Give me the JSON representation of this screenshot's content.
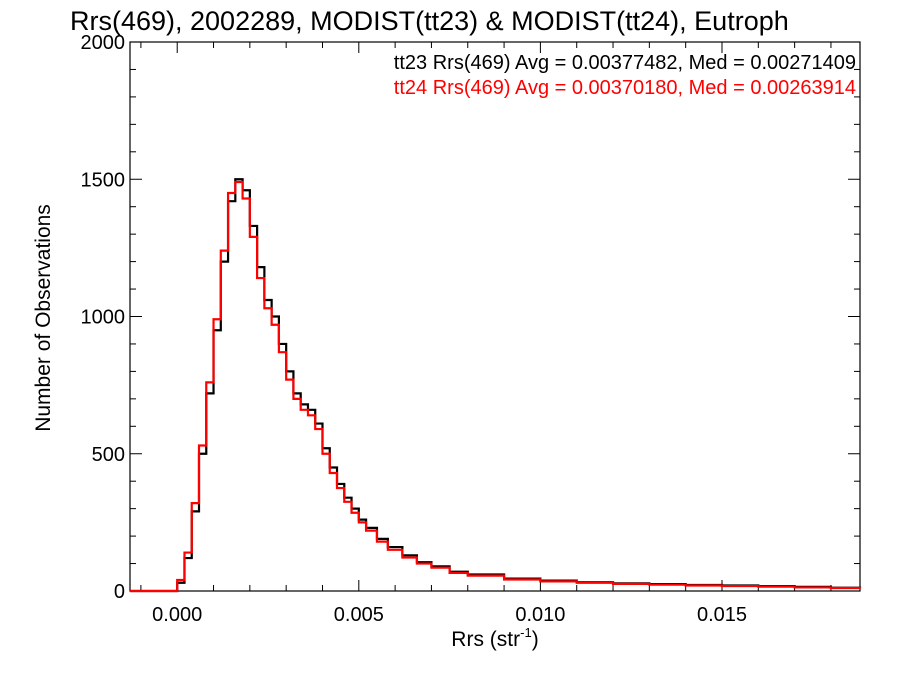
{
  "chart_data": {
    "type": "line",
    "title": "Rrs(469), 2002289, MODIST(tt23) & MODIST(tt24), Eutroph",
    "xlabel": "Rrs (str",
    "xlabel_superscript": "-1",
    "xlabel_suffix": ")",
    "ylabel": "Number of Observations",
    "xlim": [
      -0.0013,
      0.0188
    ],
    "ylim": [
      0,
      2000
    ],
    "x_ticks": [
      "0.000",
      "0.005",
      "0.010",
      "0.015"
    ],
    "x_tick_values": [
      0.0,
      0.005,
      0.01,
      0.015
    ],
    "y_ticks": [
      "0",
      "500",
      "1000",
      "1500",
      "2000"
    ],
    "y_tick_values": [
      0,
      500,
      1000,
      1500,
      2000
    ],
    "grid": false,
    "legend_position": "top-right",
    "curve_shape": "step",
    "series": [
      {
        "name": "tt23",
        "label": "tt23 Rrs(469) Avg = 0.00377482, Med = 0.00271409",
        "color": "#000000",
        "x": [
          -0.0013,
          0.0,
          0.0002,
          0.0004,
          0.0006,
          0.0008,
          0.001,
          0.0012,
          0.0014,
          0.0016,
          0.0018,
          0.002,
          0.0022,
          0.0024,
          0.0026,
          0.0028,
          0.003,
          0.0032,
          0.0034,
          0.0036,
          0.0038,
          0.004,
          0.0042,
          0.0044,
          0.0046,
          0.0048,
          0.005,
          0.0052,
          0.0055,
          0.0058,
          0.0062,
          0.0066,
          0.007,
          0.0075,
          0.008,
          0.009,
          0.01,
          0.011,
          0.012,
          0.013,
          0.014,
          0.015,
          0.016,
          0.017,
          0.018,
          0.0188
        ],
        "y": [
          0,
          30,
          120,
          290,
          500,
          720,
          950,
          1200,
          1420,
          1500,
          1460,
          1330,
          1180,
          1060,
          1000,
          900,
          800,
          720,
          680,
          660,
          610,
          520,
          450,
          390,
          340,
          300,
          260,
          230,
          190,
          160,
          130,
          105,
          90,
          70,
          60,
          45,
          38,
          32,
          28,
          25,
          22,
          20,
          18,
          15,
          12,
          10
        ]
      },
      {
        "name": "tt24",
        "label": "tt24 Rrs(469) Avg = 0.00370180, Med = 0.00263914",
        "color": "#ff0000",
        "x": [
          -0.0013,
          0.0,
          0.0002,
          0.0004,
          0.0006,
          0.0008,
          0.001,
          0.0012,
          0.0014,
          0.0016,
          0.0018,
          0.002,
          0.0022,
          0.0024,
          0.0026,
          0.0028,
          0.003,
          0.0032,
          0.0034,
          0.0036,
          0.0038,
          0.004,
          0.0042,
          0.0044,
          0.0046,
          0.0048,
          0.005,
          0.0052,
          0.0055,
          0.0058,
          0.0062,
          0.0066,
          0.007,
          0.0075,
          0.008,
          0.009,
          0.01,
          0.011,
          0.012,
          0.013,
          0.014,
          0.015,
          0.016,
          0.017,
          0.018,
          0.0188
        ],
        "y": [
          0,
          40,
          140,
          320,
          530,
          760,
          990,
          1240,
          1450,
          1490,
          1430,
          1290,
          1140,
          1030,
          970,
          870,
          770,
          700,
          660,
          640,
          590,
          500,
          430,
          375,
          325,
          285,
          250,
          220,
          180,
          150,
          122,
          100,
          85,
          66,
          56,
          42,
          35,
          30,
          26,
          23,
          20,
          18,
          16,
          13,
          11,
          9
        ]
      }
    ]
  }
}
